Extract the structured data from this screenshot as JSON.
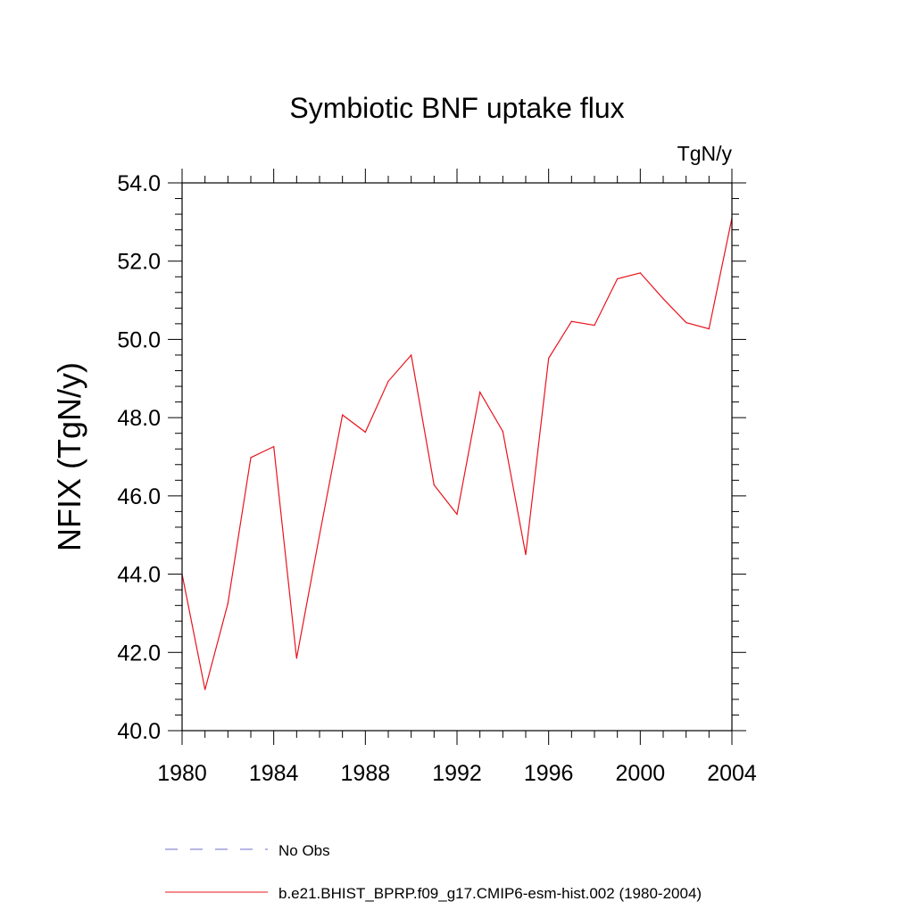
{
  "chart_data": {
    "type": "line",
    "title": "Symbiotic BNF uptake flux",
    "units": "TgN/y",
    "ylabel": "NFIX  (TgN/y)",
    "xlabel": "",
    "xlim": [
      1980,
      2004
    ],
    "ylim": [
      40.0,
      54.0
    ],
    "x_ticks": [
      1980,
      1984,
      1988,
      1992,
      1996,
      2000,
      2004
    ],
    "x_tick_labels": [
      "1980",
      "1984",
      "1988",
      "1992",
      "1996",
      "2000",
      "2004"
    ],
    "y_ticks": [
      40,
      42,
      44,
      46,
      48,
      50,
      52,
      54
    ],
    "y_tick_labels": [
      "40.0",
      "42.0",
      "44.0",
      "46.0",
      "48.0",
      "50.0",
      "52.0",
      "54.0"
    ],
    "grid": false,
    "legend_position": "bottom",
    "series": [
      {
        "name": "b.e21.BHIST_BPRP.f09_g17.CMIP6-esm-hist.002 (1980-2004)",
        "color": "#e8141e",
        "style": "solid",
        "x": [
          1980,
          1981,
          1982,
          1983,
          1984,
          1985,
          1986,
          1987,
          1988,
          1989,
          1990,
          1991,
          1992,
          1993,
          1994,
          1995,
          1996,
          1997,
          1998,
          1999,
          2000,
          2001,
          2002,
          2003,
          2004
        ],
        "values": [
          44.0,
          41.05,
          43.25,
          46.98,
          47.26,
          41.85,
          45.0,
          48.07,
          47.63,
          48.93,
          49.6,
          46.28,
          45.53,
          48.65,
          47.65,
          44.5,
          49.52,
          50.46,
          50.36,
          51.55,
          51.7,
          51.04,
          50.43,
          50.27,
          53.1
        ]
      }
    ],
    "legend": [
      {
        "label": "No Obs",
        "color": "#6e6ec8",
        "style": "dashed"
      },
      {
        "label": "b.e21.BHIST_BPRP.f09_g17.CMIP6-esm-hist.002 (1980-2004)",
        "color": "#e8141e",
        "style": "solid"
      }
    ]
  }
}
